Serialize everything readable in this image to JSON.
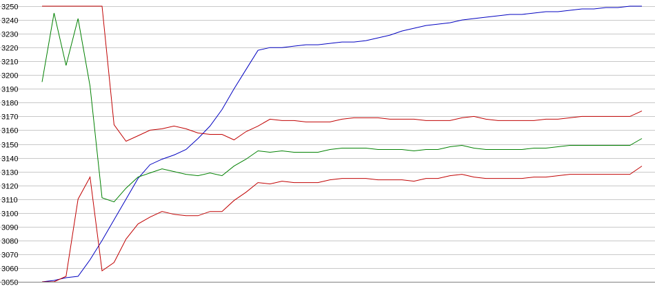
{
  "chart_data": {
    "type": "line",
    "title": "",
    "xlabel": "",
    "ylabel": "",
    "ylim": [
      3050,
      3250
    ],
    "yticks": [
      3050,
      3060,
      3070,
      3080,
      3090,
      3100,
      3110,
      3120,
      3130,
      3140,
      3150,
      3160,
      3170,
      3180,
      3190,
      3200,
      3210,
      3220,
      3230,
      3240,
      3250
    ],
    "grid": true,
    "legend": "none",
    "x": [
      1,
      2,
      3,
      4,
      5,
      6,
      7,
      8,
      9,
      10,
      11,
      12,
      13,
      14,
      15,
      16,
      17,
      18,
      19,
      20,
      21,
      22,
      23,
      24,
      25,
      26,
      27,
      28,
      29,
      30,
      31,
      32,
      33,
      34,
      35,
      36,
      37,
      38,
      39,
      40,
      41,
      42,
      43,
      44,
      45,
      46,
      47,
      48,
      49,
      50,
      51
    ],
    "series": [
      {
        "color": "#0000c0",
        "values": [
          3050,
          3051,
          3053,
          3054,
          3066,
          3080,
          3095,
          3110,
          3125,
          3135,
          3139,
          3142,
          3146,
          3154,
          3163,
          3175,
          3190,
          3204,
          3218,
          3220,
          3220,
          3221,
          3222,
          3222,
          3223,
          3224,
          3224,
          3225,
          3227,
          3229,
          3232,
          3234,
          3236,
          3237,
          3238,
          3240,
          3241,
          3242,
          3243,
          3244,
          3244,
          3245,
          3246,
          3246,
          3247,
          3248,
          3248,
          3249,
          3249,
          3250,
          3250
        ]
      },
      {
        "color": "#c00000",
        "values": [
          3250,
          3250,
          3250,
          3250,
          3250,
          3250,
          3164,
          3152,
          3156,
          3160,
          3161,
          3163,
          3161,
          3158,
          3157,
          3157,
          3153,
          3159,
          3163,
          3168,
          3167,
          3167,
          3166,
          3166,
          3166,
          3168,
          3169,
          3169,
          3169,
          3168,
          3168,
          3168,
          3167,
          3167,
          3167,
          3169,
          3170,
          3168,
          3167,
          3167,
          3167,
          3167,
          3168,
          3168,
          3169,
          3170,
          3170,
          3170,
          3170,
          3170,
          3174
        ]
      },
      {
        "color": "#008000",
        "values": [
          3195,
          3245,
          3207,
          3241,
          3192,
          3111,
          3108,
          3118,
          3126,
          3129,
          3132,
          3130,
          3128,
          3127,
          3129,
          3127,
          3134,
          3139,
          3145,
          3144,
          3145,
          3144,
          3144,
          3144,
          3146,
          3147,
          3147,
          3147,
          3146,
          3146,
          3146,
          3145,
          3146,
          3146,
          3148,
          3149,
          3147,
          3146,
          3146,
          3146,
          3146,
          3147,
          3147,
          3148,
          3149,
          3149,
          3149,
          3149,
          3149,
          3149,
          3154
        ]
      },
      {
        "color": "#c00000",
        "values": [
          3050,
          3050,
          3054,
          3110,
          3126,
          3058,
          3064,
          3081,
          3092,
          3097,
          3101,
          3099,
          3098,
          3098,
          3101,
          3101,
          3109,
          3115,
          3122,
          3121,
          3123,
          3122,
          3122,
          3122,
          3124,
          3125,
          3125,
          3125,
          3124,
          3124,
          3124,
          3123,
          3125,
          3125,
          3127,
          3128,
          3126,
          3125,
          3125,
          3125,
          3125,
          3126,
          3126,
          3127,
          3128,
          3128,
          3128,
          3128,
          3128,
          3128,
          3134
        ]
      }
    ]
  }
}
